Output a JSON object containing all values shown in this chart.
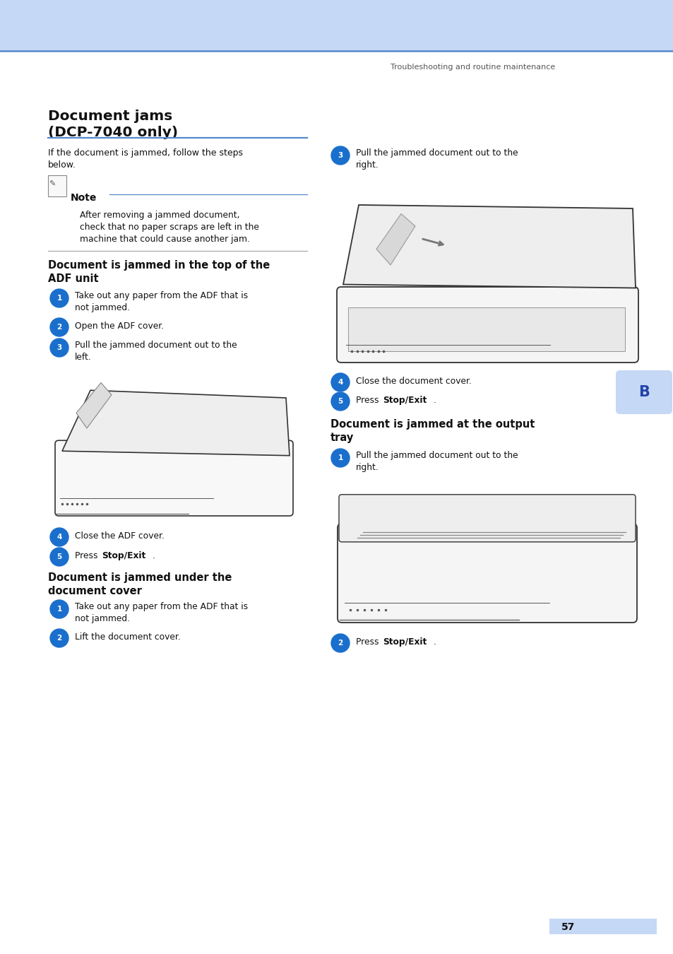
{
  "bg_color": "#ffffff",
  "header_bar_color": "#c5d8f5",
  "header_line_color": "#5588cc",
  "header_text": "Troubleshooting and routine maintenance",
  "main_title": "Document jams\n(DCP-7040 only)",
  "title_rule_color": "#5588cc",
  "intro_text": "If the document is jammed, follow the steps\nbelow.",
  "note_title": "Note",
  "note_body": "After removing a jammed document,\ncheck that no paper scraps are left in the\nmachine that could cause another jam.",
  "note_rule_color": "#5588cc",
  "sec1_title": "Document is jammed in the top of the\nADF unit",
  "sec1_s1": "Take out any paper from the ADF that is\nnot jammed.",
  "sec1_s2": "Open the ADF cover.",
  "sec1_s3": "Pull the jammed document out to the\nleft.",
  "sec1_s4": "Close the ADF cover.",
  "sec1_s5a": "Press ",
  "sec1_s5b": "Stop/Exit",
  "sec1_s5c": ".",
  "sec2_title": "Document is jammed under the\ndocument cover",
  "sec2_s1": "Take out any paper from the ADF that is\nnot jammed.",
  "sec2_s2": "Lift the document cover.",
  "rcol_s3a": "Pull the jammed document out to the\nright.",
  "rcol_s4": "Close the document cover.",
  "rcol_s5a": "Press ",
  "rcol_s5b": "Stop/Exit",
  "rcol_s5c": ".",
  "sec3_title": "Document is jammed at the output\ntray",
  "sec3_s1": "Pull the jammed document out to the\nright.",
  "sec3_s2a": "Press ",
  "sec3_s2b": "Stop/Exit",
  "sec3_s2c": ".",
  "page_num": "57",
  "b_label": "B",
  "bullet_blue": "#1a6fcc",
  "bullet_white": "#ffffff",
  "text_dark": "#111111",
  "text_gray": "#444444",
  "rule_blue": "#5588cc",
  "rule_gray": "#aaaaaa",
  "b_bg": "#c5d8f5",
  "b_text": "#2244aa",
  "page_bg2": "#c5d8f5"
}
